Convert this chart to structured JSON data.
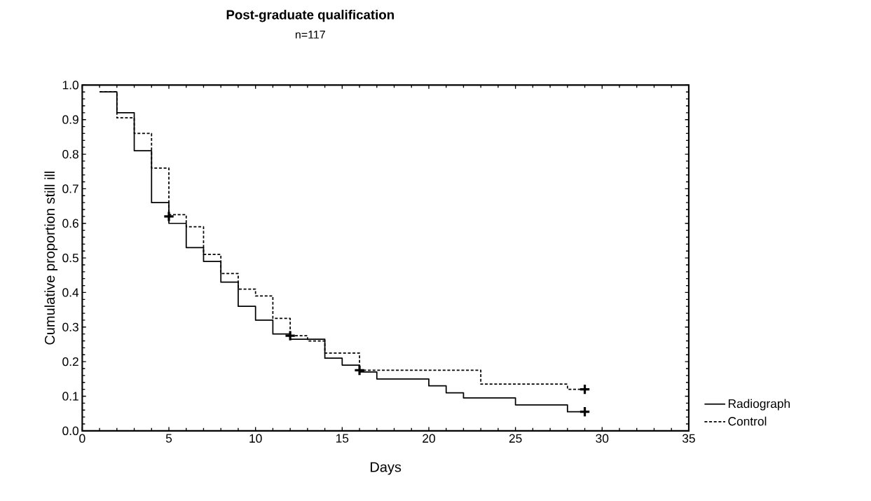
{
  "chart_data": {
    "type": "step",
    "title": "Post-graduate qualification",
    "subtitle": "n=117",
    "xlabel": "Days",
    "ylabel": "Cumulative proportion still ill",
    "xlim": [
      0,
      35
    ],
    "xticks": [
      0,
      5,
      10,
      15,
      20,
      25,
      30,
      35
    ],
    "ylim": [
      0,
      1
    ],
    "yticks": [
      {
        "value": 0,
        "label": "0.0"
      },
      0.1,
      0.2,
      0.3,
      0.4,
      0.5,
      0.6,
      0.7,
      0.8,
      0.9,
      {
        "value": 1,
        "label": "1.0"
      }
    ],
    "grid": false,
    "legend": "right",
    "series": [
      {
        "name": "Radiograph",
        "color": "#000000",
        "line_style": "solid",
        "x": [
          1,
          2,
          3,
          4,
          5,
          6,
          7,
          8,
          9,
          10,
          11,
          12,
          14,
          15,
          16,
          17,
          20,
          21,
          22,
          25,
          28,
          29
        ],
        "values": [
          0.98,
          0.92,
          0.81,
          0.66,
          0.6,
          0.53,
          0.49,
          0.43,
          0.36,
          0.32,
          0.28,
          0.265,
          0.21,
          0.19,
          0.17,
          0.15,
          0.13,
          0.11,
          0.095,
          0.075,
          0.055,
          0.055
        ]
      },
      {
        "name": "Control",
        "color": "#000000",
        "line_style": "dashed",
        "x": [
          1,
          2,
          3,
          4,
          5,
          6,
          7,
          8,
          9,
          10,
          11,
          12,
          13,
          14,
          16,
          23,
          28,
          29
        ],
        "values": [
          0.98,
          0.905,
          0.86,
          0.76,
          0.625,
          0.59,
          0.51,
          0.455,
          0.41,
          0.39,
          0.325,
          0.275,
          0.26,
          0.225,
          0.175,
          0.135,
          0.12,
          0.12
        ]
      },
      {
        "type": "scatter",
        "color": "#000000",
        "marker": "cross",
        "x": [
          5,
          12,
          16,
          29,
          29
        ],
        "values": [
          0.62,
          0.275,
          0.175,
          0.12,
          0.055
        ]
      }
    ]
  }
}
